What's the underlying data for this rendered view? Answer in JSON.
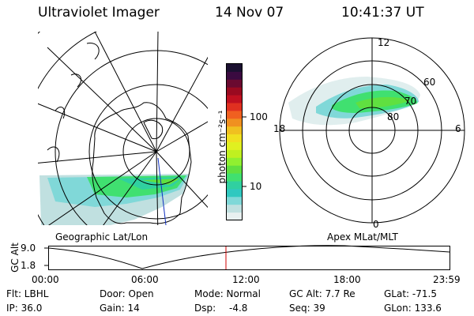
{
  "header": {
    "instrument": "Ultraviolet Imager",
    "date": "14 Nov 07",
    "time": "10:41:37 UT"
  },
  "colorbar": {
    "unit_label": "photon cm⁻²s⁻¹",
    "ticks": [
      "100",
      "10"
    ],
    "scale": "log",
    "colors": [
      "#1a1030",
      "#3a0a40",
      "#6a0a30",
      "#9a0a20",
      "#c01020",
      "#e03020",
      "#f06020",
      "#f09020",
      "#f0c020",
      "#f0e020",
      "#e0f020",
      "#c0f020",
      "#90f030",
      "#60e040",
      "#40e070",
      "#30d0a0",
      "#30c8c0",
      "#80d8d8",
      "#c0e0e0",
      "#e8f0f0"
    ]
  },
  "left_map": {
    "label": "Geographic Lat/Lon"
  },
  "right_map": {
    "label": "Apex MLat/MLT",
    "mlt_labels": [
      "12",
      "18",
      "6",
      "0"
    ],
    "mlat_labels": [
      "60",
      "70",
      "80"
    ]
  },
  "altitude_plot": {
    "ylabel": "GC Alt",
    "yticks": [
      "9.0",
      "1.8"
    ],
    "xticks": [
      "00:00",
      "06:00",
      "12:00",
      "18:00",
      "23:59"
    ],
    "marker_color": "#d00000"
  },
  "footer": {
    "filter": "Flt: LBHL",
    "ip": "IP: 36.0",
    "door": "Door: Open",
    "gain": "Gain: 14",
    "mode": "Mode: Normal",
    "dsp": "Dsp:",
    "dsp_value": "-4.8",
    "gc_alt": "GC Alt: 7.7 Re",
    "seq": "Seq: 39",
    "glat": "GLat: -71.5",
    "glon": "GLon: 133.6"
  }
}
